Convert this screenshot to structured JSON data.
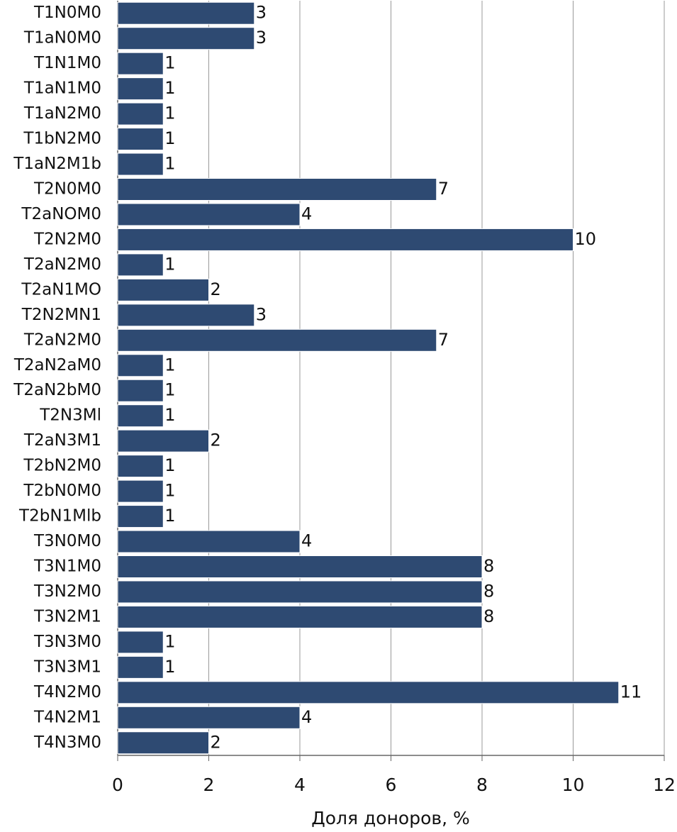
{
  "chart_data": {
    "type": "bar",
    "orientation": "horizontal",
    "categories": [
      "T1N0M0",
      "T1aN0M0",
      "T1N1M0",
      "T1aN1M0",
      "T1aN2M0",
      "T1bN2M0",
      "T1aN2M1b",
      "T2N0M0",
      "T2aNOM0",
      "T2N2M0",
      "T2aN2M0",
      "T2aN1MO",
      "T2N2MN1",
      "T2aN2M0",
      "T2aN2aM0",
      "T2aN2bM0",
      "T2N3Ml",
      "T2aN3M1",
      "T2bN2M0",
      "T2bN0M0",
      "T2bN1Mlb",
      "T3N0M0",
      "T3N1M0",
      "T3N2M0",
      "T3N2M1",
      "T3N3M0",
      "T3N3M1",
      "T4N2M0",
      "T4N2M1",
      "T4N3M0"
    ],
    "values": [
      3,
      3,
      1,
      1,
      1,
      1,
      1,
      7,
      4,
      10,
      1,
      2,
      3,
      7,
      1,
      1,
      1,
      2,
      1,
      1,
      1,
      4,
      8,
      8,
      8,
      1,
      1,
      11,
      4,
      2
    ],
    "color": "#2e4a72",
    "xlabel": "Доля доноров, %",
    "xlim": [
      0,
      12
    ],
    "xticks": [
      0,
      2,
      4,
      6,
      8,
      10,
      12
    ],
    "grid": true
  }
}
